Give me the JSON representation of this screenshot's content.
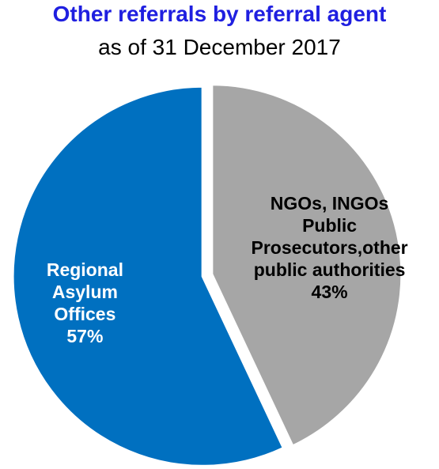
{
  "chart_data": {
    "type": "pie",
    "title": "Other referrals by referral agent",
    "subtitle": "as of 31 December 2017",
    "categories": [
      "NGOs, INGOs Public Prosecutors,other public authorities",
      "Regional Asylum Offices"
    ],
    "values": [
      43,
      57
    ],
    "value_labels": [
      "43%",
      "57%"
    ],
    "colors": [
      "#a6a6a6",
      "#0070c0"
    ]
  }
}
